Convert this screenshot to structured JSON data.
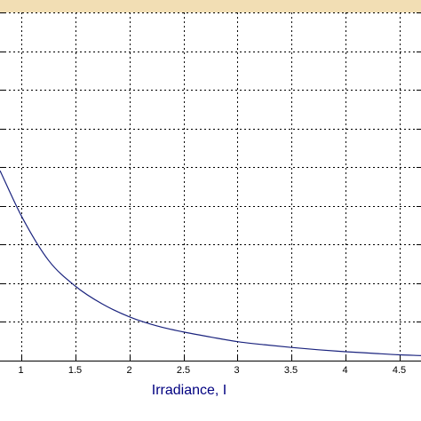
{
  "chart_data": {
    "type": "line",
    "xlabel": "Irradiance, I",
    "ylabel": "",
    "title": "",
    "xlim": [
      0.8,
      4.7
    ],
    "ylim": [
      0,
      9
    ],
    "grid": true,
    "x_ticks": [
      1,
      1.5,
      2,
      2.5,
      3,
      3.5,
      4,
      4.5
    ],
    "x_tick_labels": [
      "1",
      "1.5",
      "2",
      "2.5",
      "3",
      "3.5",
      "4",
      "4.5"
    ],
    "y_gridlines": [
      1,
      2,
      3,
      4,
      5,
      6,
      7,
      8,
      9
    ],
    "series": [
      {
        "color": "#1a237e",
        "x": [
          0.8,
          1.0,
          1.25,
          1.5,
          1.75,
          2.0,
          2.25,
          2.5,
          2.75,
          3.0,
          3.25,
          3.5,
          3.75,
          4.0,
          4.25,
          4.5,
          4.7
        ],
        "y": [
          4.91,
          3.73,
          2.59,
          1.92,
          1.46,
          1.13,
          0.9,
          0.74,
          0.61,
          0.49,
          0.41,
          0.34,
          0.28,
          0.23,
          0.19,
          0.15,
          0.13
        ]
      }
    ]
  },
  "colors": {
    "background": "#ffffff",
    "top_strip": "#f2deb4",
    "grid": "#000000",
    "line": "#1a237e",
    "axis_title": "#000080"
  }
}
